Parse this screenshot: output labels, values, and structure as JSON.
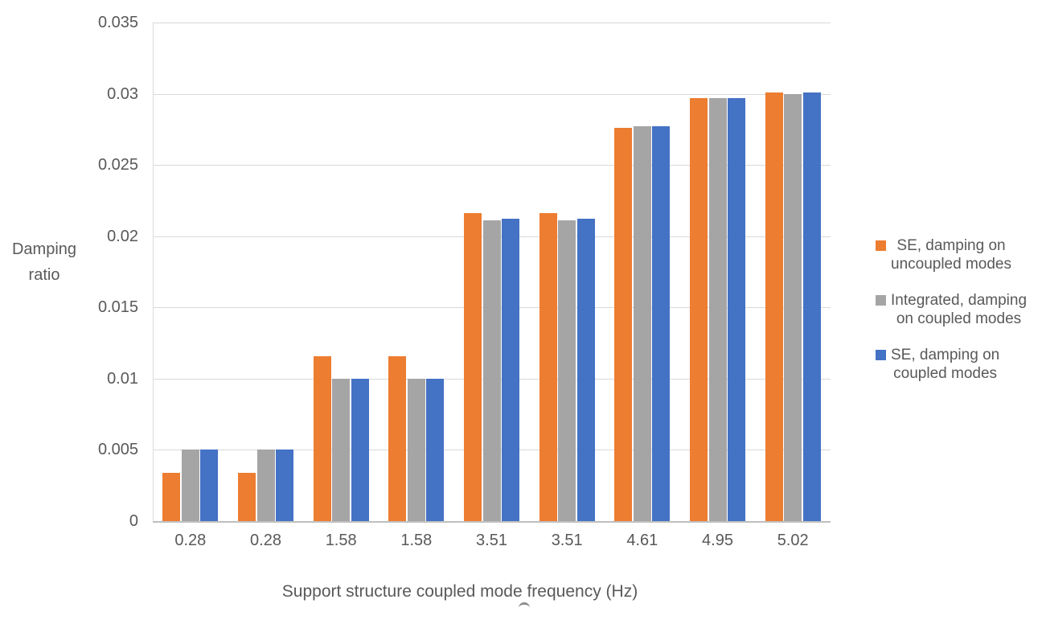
{
  "chart_data": {
    "type": "bar",
    "title": "",
    "xlabel": "Support structure coupled mode frequency (Hz)",
    "ylabel": "Damping ratio",
    "ylabel_lines": [
      "Damping",
      "ratio"
    ],
    "categories": [
      "0.28",
      "0.28",
      "1.58",
      "1.58",
      "3.51",
      "3.51",
      "4.61",
      "4.95",
      "5.02"
    ],
    "series": [
      {
        "name": "SE, damping on uncoupled modes",
        "legend_lines": [
          "SE, damping on",
          "uncoupled modes"
        ],
        "color": "#ED7D31",
        "values": [
          0.0034,
          0.0034,
          0.0116,
          0.0116,
          0.0216,
          0.0216,
          0.0276,
          0.0297,
          0.0301
        ]
      },
      {
        "name": "Integrated, damping on coupled modes",
        "legend_lines": [
          "Integrated, damping",
          "on coupled modes"
        ],
        "color": "#A5A5A5",
        "values": [
          0.005,
          0.005,
          0.01,
          0.01,
          0.0211,
          0.0211,
          0.0277,
          0.0297,
          0.03
        ]
      },
      {
        "name": "SE, damping on coupled modes",
        "legend_lines": [
          "SE, damping on",
          "coupled modes"
        ],
        "color": "#4472C4",
        "values": [
          0.005,
          0.005,
          0.01,
          0.01,
          0.0212,
          0.0212,
          0.0277,
          0.0297,
          0.0301
        ]
      }
    ],
    "ylim": [
      0,
      0.035
    ],
    "yticks": [
      {
        "value": 0.035,
        "label": "0.035"
      },
      {
        "value": 0.03,
        "label": "0.03"
      },
      {
        "value": 0.025,
        "label": "0.025"
      },
      {
        "value": 0.02,
        "label": "0.02"
      },
      {
        "value": 0.015,
        "label": "0.015"
      },
      {
        "value": 0.01,
        "label": "0.01"
      },
      {
        "value": 0.005,
        "label": "0.005"
      },
      {
        "value": 0,
        "label": "0"
      }
    ],
    "grid": true,
    "legend_position": "right",
    "colors": {
      "gridline": "#D9D9D9",
      "axis_line": "#BFBFBF",
      "text": "#595959"
    }
  }
}
